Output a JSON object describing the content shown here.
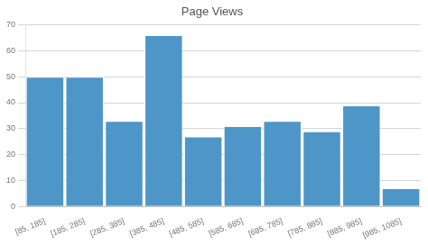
{
  "chart_data": {
    "type": "bar",
    "title": "Page Views",
    "categories": [
      "[85, 185]",
      "[185, 285]",
      "[285, 385]",
      "[385, 485]",
      "[485, 585]",
      "[585, 685]",
      "[685, 785]",
      "[785, 885]",
      "[885, 985]",
      "[985, 1085]"
    ],
    "values": [
      50,
      50,
      33,
      66,
      27,
      31,
      33,
      29,
      39,
      7
    ],
    "color": "#4e96c8",
    "ylim": [
      0,
      70
    ],
    "yticks": [
      0,
      10,
      20,
      30,
      40,
      50,
      60,
      70
    ],
    "grid": true
  }
}
